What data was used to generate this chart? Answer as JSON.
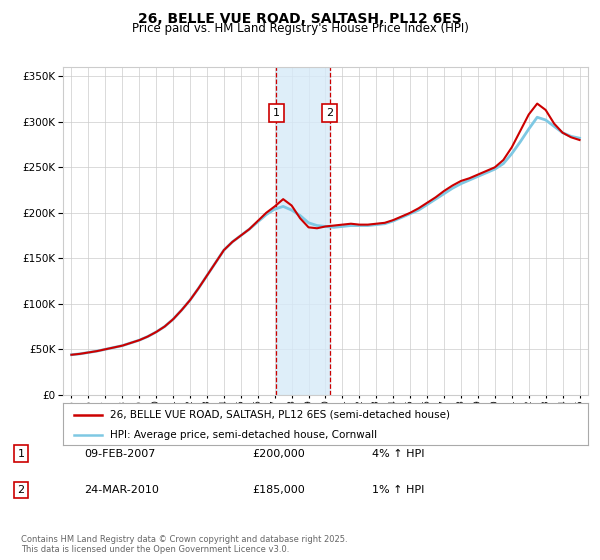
{
  "title": "26, BELLE VUE ROAD, SALTASH, PL12 6ES",
  "subtitle": "Price paid vs. HM Land Registry's House Price Index (HPI)",
  "legend_line1": "26, BELLE VUE ROAD, SALTASH, PL12 6ES (semi-detached house)",
  "legend_line2": "HPI: Average price, semi-detached house, Cornwall",
  "transaction1_date": "09-FEB-2007",
  "transaction1_price": "£200,000",
  "transaction1_hpi": "4% ↑ HPI",
  "transaction2_date": "24-MAR-2010",
  "transaction2_price": "£185,000",
  "transaction2_hpi": "1% ↑ HPI",
  "footnote": "Contains HM Land Registry data © Crown copyright and database right 2025.\nThis data is licensed under the Open Government Licence v3.0.",
  "hpi_color": "#7ec8e3",
  "price_color": "#cc0000",
  "marker_color": "#cc0000",
  "shading_color": "#d6eaf8",
  "dashed_color": "#cc0000",
  "background_color": "#ffffff",
  "grid_color": "#cccccc",
  "ylim_min": 0,
  "ylim_max": 360000,
  "transaction1_x": 2007.1,
  "transaction2_x": 2010.25,
  "years": [
    1995,
    1995.5,
    1996,
    1996.5,
    1997,
    1997.5,
    1998,
    1998.5,
    1999,
    1999.5,
    2000,
    2000.5,
    2001,
    2001.5,
    2002,
    2002.5,
    2003,
    2003.5,
    2004,
    2004.5,
    2005,
    2005.5,
    2006,
    2006.5,
    2007,
    2007.5,
    2008,
    2008.5,
    2009,
    2009.5,
    2010,
    2010.5,
    2011,
    2011.5,
    2012,
    2012.5,
    2013,
    2013.5,
    2014,
    2014.5,
    2015,
    2015.5,
    2016,
    2016.5,
    2017,
    2017.5,
    2018,
    2018.5,
    2019,
    2019.5,
    2020,
    2020.5,
    2021,
    2021.5,
    2022,
    2022.5,
    2023,
    2023.5,
    2024,
    2024.5,
    2025
  ],
  "hpi_values": [
    44000,
    45000,
    46500,
    48000,
    50000,
    52000,
    54000,
    57000,
    60000,
    64000,
    69000,
    75000,
    83000,
    93000,
    104000,
    117000,
    131000,
    145000,
    159000,
    168000,
    175000,
    182000,
    190000,
    198000,
    204000,
    207000,
    203000,
    197000,
    189000,
    186000,
    185000,
    184000,
    185000,
    186000,
    186000,
    186000,
    187000,
    188000,
    191000,
    195000,
    199000,
    203000,
    209000,
    215000,
    221000,
    227000,
    232000,
    236000,
    240000,
    244000,
    248000,
    254000,
    265000,
    278000,
    292000,
    305000,
    302000,
    295000,
    288000,
    284000,
    282000
  ],
  "price_values": [
    44000,
    45000,
    46500,
    48000,
    50000,
    52000,
    54000,
    57000,
    60000,
    64000,
    69000,
    75000,
    83000,
    93000,
    104000,
    117000,
    131000,
    145000,
    159000,
    168000,
    175000,
    182000,
    191000,
    200000,
    207000,
    215000,
    208000,
    194000,
    184000,
    183000,
    185000,
    186000,
    187000,
    188000,
    187000,
    187000,
    188000,
    189000,
    192000,
    196000,
    200000,
    205000,
    211000,
    217000,
    224000,
    230000,
    235000,
    238000,
    242000,
    246000,
    250000,
    258000,
    272000,
    290000,
    308000,
    320000,
    313000,
    298000,
    288000,
    283000,
    280000
  ]
}
